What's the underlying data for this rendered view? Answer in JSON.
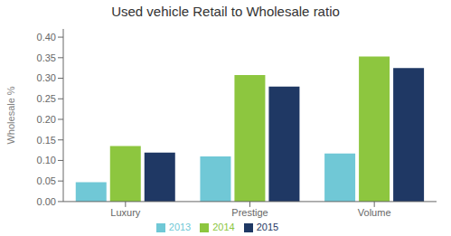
{
  "chart_data": {
    "type": "bar",
    "title": "Used vehicle Retail to Wholesale ratio",
    "ylabel": "Wholesale %",
    "categories": [
      "Luxury",
      "Prestige",
      "Volume"
    ],
    "series": [
      {
        "name": "2013",
        "color": "#70C8D6",
        "values": [
          0.047,
          0.11,
          0.117
        ]
      },
      {
        "name": "2014",
        "color": "#8DC63F",
        "values": [
          0.135,
          0.308,
          0.353
        ]
      },
      {
        "name": "2015",
        "color": "#1F3864",
        "values": [
          0.119,
          0.28,
          0.325
        ]
      }
    ],
    "ylim": [
      0,
      0.42
    ],
    "yticks": [
      {
        "value": 0.0,
        "label": "0.00"
      },
      0.05,
      {
        "value": 0.1,
        "label": "0.10"
      },
      0.15,
      {
        "value": 0.2,
        "label": "0.20"
      },
      0.25,
      {
        "value": 0.3,
        "label": "0.30"
      },
      0.35,
      {
        "value": 0.4,
        "label": "0.40"
      }
    ],
    "grid": false,
    "legend": "bottom"
  }
}
